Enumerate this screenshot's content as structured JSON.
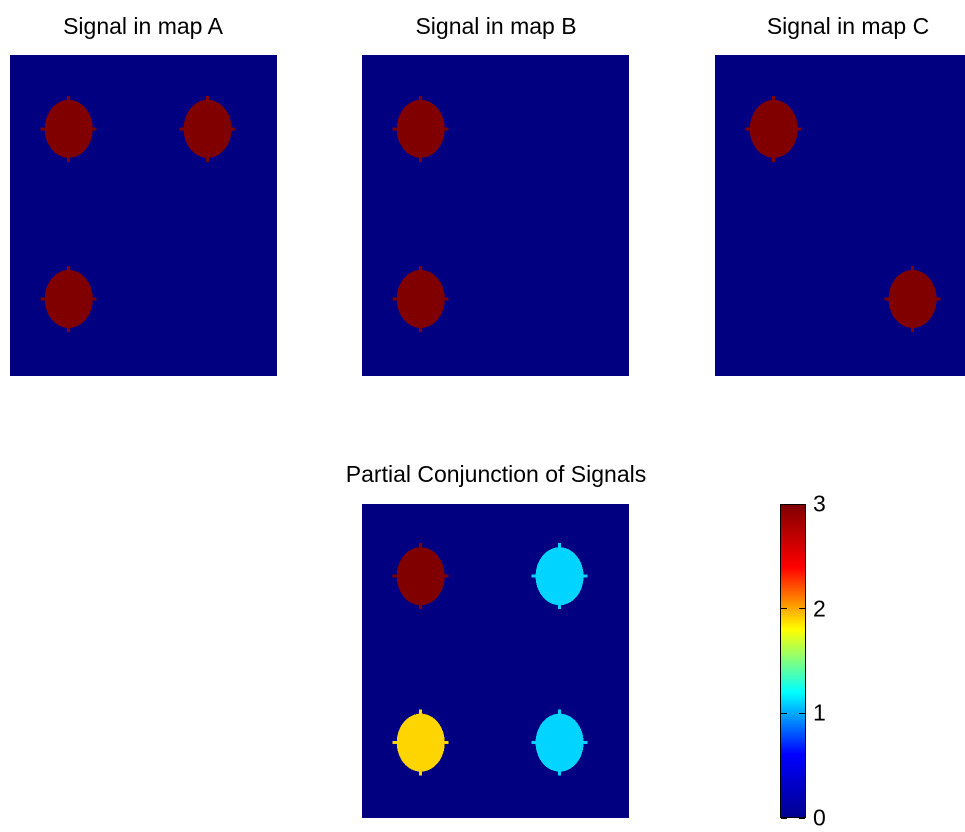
{
  "colors": {
    "background": "#000080",
    "colormap": "jet",
    "jet_stops": [
      "#00008f",
      "#0000ff",
      "#00ffff",
      "#ffff00",
      "#ff0000",
      "#800000"
    ]
  },
  "chart_data": [
    {
      "type": "heatmap",
      "title": "Signal in map A",
      "clim": [
        0,
        3
      ],
      "blobs": [
        {
          "col": 1,
          "row": 1,
          "value": 3
        },
        {
          "col": 2,
          "row": 1,
          "value": 3
        },
        {
          "col": 1,
          "row": 2,
          "value": 3
        }
      ]
    },
    {
      "type": "heatmap",
      "title": "Signal in map B",
      "clim": [
        0,
        3
      ],
      "blobs": [
        {
          "col": 1,
          "row": 1,
          "value": 3
        },
        {
          "col": 1,
          "row": 2,
          "value": 3
        }
      ]
    },
    {
      "type": "heatmap",
      "title": "Signal in map C",
      "clim": [
        0,
        3
      ],
      "blobs": [
        {
          "col": 1,
          "row": 1,
          "value": 3
        },
        {
          "col": 2,
          "row": 2,
          "value": 3
        }
      ]
    },
    {
      "type": "heatmap",
      "title": "Partial Conjunction of Signals",
      "clim": [
        0,
        3
      ],
      "blobs": [
        {
          "col": 1,
          "row": 1,
          "value": 3
        },
        {
          "col": 2,
          "row": 1,
          "value": 1
        },
        {
          "col": 1,
          "row": 2,
          "value": 2
        },
        {
          "col": 2,
          "row": 2,
          "value": 1
        }
      ],
      "colorbar": {
        "ticks": [
          0,
          1,
          2,
          3
        ],
        "tick_labels": [
          "0",
          "1",
          "2",
          "3"
        ]
      }
    }
  ]
}
